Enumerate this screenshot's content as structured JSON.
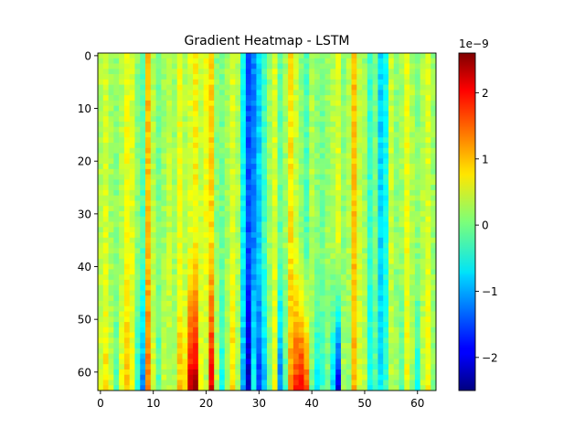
{
  "chart_data": {
    "type": "heatmap",
    "title": "Gradient Heatmap - LSTM",
    "xlabel": "",
    "ylabel": "",
    "rows": 64,
    "cols": 64,
    "x_ticks": [
      "0",
      "10",
      "20",
      "30",
      "40",
      "50",
      "60"
    ],
    "y_ticks": [
      "0",
      "10",
      "20",
      "30",
      "40",
      "50",
      "60"
    ],
    "y_axis_inverted": true,
    "colormap": "jet",
    "colorbar": {
      "scale_label": "1e−9",
      "min": -2.5,
      "max": 2.6,
      "ticks": [
        {
          "value": -2,
          "label": "−2"
        },
        {
          "value": -1,
          "label": "−1"
        },
        {
          "value": 0,
          "label": "0"
        },
        {
          "value": 1,
          "label": "1"
        },
        {
          "value": 2,
          "label": "2"
        }
      ]
    },
    "column_profile_top": [
      0.3,
      0.5,
      0.2,
      0.1,
      0.3,
      0.6,
      0.5,
      0.1,
      -0.2,
      1.0,
      0.3,
      0.0,
      0.2,
      0.4,
      0.2,
      0.6,
      0.3,
      0.5,
      0.7,
      0.4,
      0.6,
      0.9,
      0.1,
      0.0,
      0.2,
      0.5,
      0.3,
      -0.6,
      -1.5,
      -1.2,
      -0.8,
      -0.3,
      0.2,
      0.5,
      -0.1,
      0.2,
      0.8,
      0.4,
      0.1,
      -0.2,
      0.3,
      0.1,
      0.0,
      0.2,
      0.3,
      0.5,
      0.1,
      0.3,
      1.0,
      0.4,
      0.2,
      -0.3,
      0.0,
      -0.8,
      -0.5,
      0.4,
      0.1,
      0.2,
      0.6,
      0.3,
      0.1,
      0.3,
      0.5,
      0.2
    ],
    "column_profile_bottom": [
      0.5,
      0.8,
      0.4,
      -0.2,
      0.6,
      1.0,
      0.6,
      -0.4,
      -1.2,
      1.4,
      0.5,
      -0.2,
      0.4,
      0.3,
      0.2,
      1.0,
      0.8,
      2.2,
      2.4,
      0.6,
      0.3,
      2.1,
      0.4,
      -0.5,
      0.3,
      0.9,
      0.2,
      -1.0,
      -2.2,
      -0.5,
      -1.6,
      -1.0,
      0.0,
      0.6,
      -1.3,
      -0.2,
      1.2,
      1.8,
      2.0,
      1.5,
      0.0,
      -0.6,
      -0.3,
      0.0,
      -0.8,
      -2.0,
      0.3,
      0.1,
      1.1,
      0.5,
      0.4,
      -0.6,
      -0.2,
      -0.7,
      -0.3,
      0.3,
      0.2,
      -0.2,
      0.6,
      0.2,
      -0.5,
      0.4,
      0.7,
      0.1
    ]
  }
}
